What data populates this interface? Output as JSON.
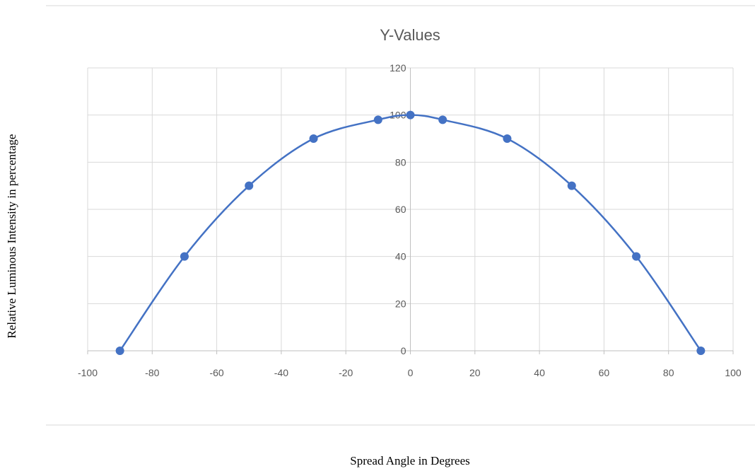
{
  "chart_data": {
    "type": "scatter",
    "title": "Y-Values",
    "xlabel": "Spread Angle in Degrees",
    "ylabel": "Relative Luminous Intensity in percentage",
    "xlim": [
      -100,
      100
    ],
    "ylim": [
      0,
      120
    ],
    "x_ticks": [
      "-100",
      "-80",
      "-60",
      "-40",
      "-20",
      "0",
      "20",
      "40",
      "60",
      "80",
      "100"
    ],
    "y_ticks": [
      "0",
      "20",
      "40",
      "60",
      "80",
      "100",
      "120"
    ],
    "grid": true,
    "smoothed_line": true,
    "legend": "none",
    "series": [
      {
        "x": [
          -90,
          -70,
          -50,
          -30,
          -10,
          0,
          10,
          30,
          50,
          70,
          90
        ],
        "y": [
          0,
          40,
          70,
          90,
          98,
          100,
          98,
          90,
          70,
          40,
          0
        ]
      }
    ],
    "colors": {
      "series": "#4472C4",
      "grid": "#d9d9d9",
      "text": "#595959"
    }
  }
}
